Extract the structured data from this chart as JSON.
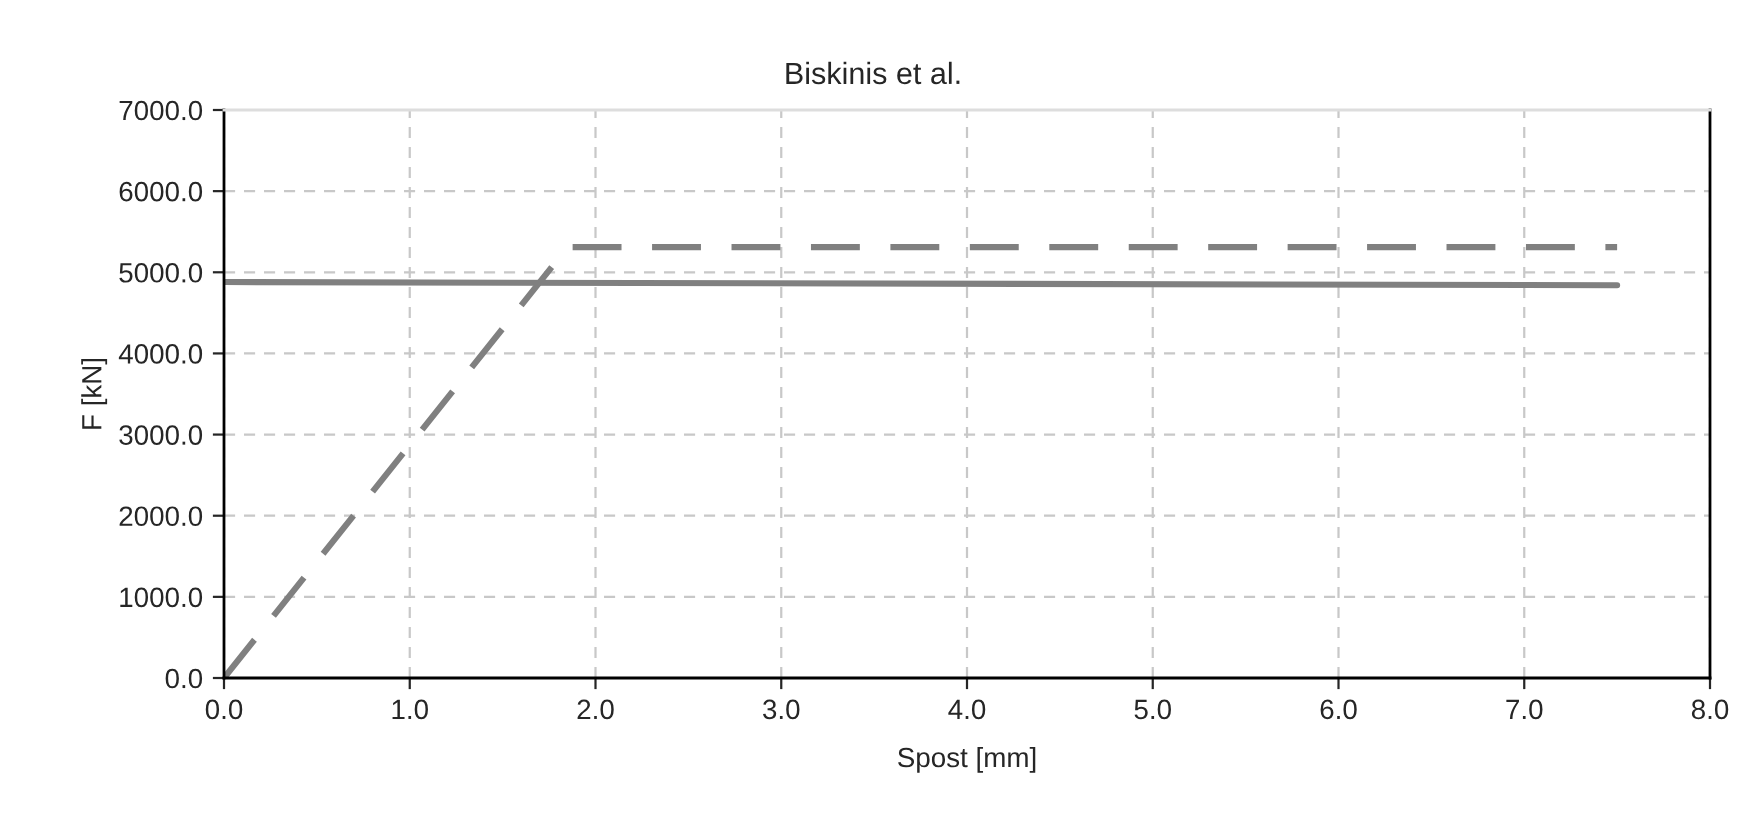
{
  "chart_data": {
    "type": "line",
    "title": "Biskinis et al.",
    "xlabel": "Spost [mm]",
    "ylabel": "F [kN]",
    "series": [
      {
        "color": "#808080",
        "x": [
          0,
          7.5
        ],
        "values": [
          4880,
          4840
        ],
        "line_style": "solid"
      },
      {
        "color": "#808080",
        "x": [
          0,
          1.85,
          7.5
        ],
        "values": [
          0,
          5310,
          5310
        ],
        "line_style": "dashed"
      }
    ],
    "xlim": [
      0,
      8
    ],
    "ylim": [
      0,
      7000
    ],
    "xticks": [
      {
        "value": 0,
        "label": "0.0"
      },
      {
        "value": 1,
        "label": "1.0"
      },
      {
        "value": 2,
        "label": "2.0"
      },
      {
        "value": 3,
        "label": "3.0"
      },
      {
        "value": 4,
        "label": "4.0"
      },
      {
        "value": 5,
        "label": "5.0"
      },
      {
        "value": 6,
        "label": "6.0"
      },
      {
        "value": 7,
        "label": "7.0"
      },
      {
        "value": 8,
        "label": "8.0"
      }
    ],
    "yticks": [
      {
        "value": 0,
        "label": "0.0"
      },
      {
        "value": 1000,
        "label": "1000.0"
      },
      {
        "value": 2000,
        "label": "2000.0"
      },
      {
        "value": 3000,
        "label": "3000.0"
      },
      {
        "value": 4000,
        "label": "4000.0"
      },
      {
        "value": 5000,
        "label": "5000.0"
      },
      {
        "value": 6000,
        "label": "6000.0"
      },
      {
        "value": 7000,
        "label": "7000.0"
      }
    ],
    "grid": true
  }
}
